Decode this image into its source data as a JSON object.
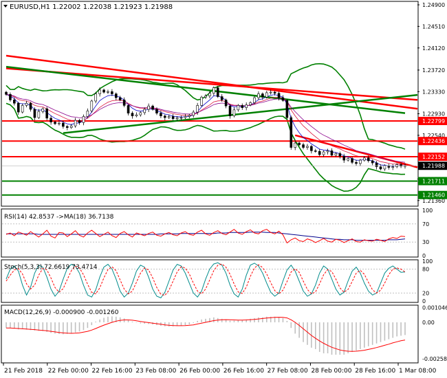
{
  "chart_data": {
    "type": "candlestick",
    "symbol": "EURUSD,H1",
    "title": "EURUSD,H1  1.22002 1.22038 1.21923 1.21988",
    "ohlc": {
      "open": 1.22002,
      "high": 1.22038,
      "low": 1.21923,
      "close": 1.21988
    },
    "price_axis": {
      "ticks": [
        "1.24900",
        "1.24510",
        "1.24120",
        "1.23720",
        "1.23330",
        "1.22930",
        "1.22540",
        "1.22150",
        "1.21750",
        "1.21360"
      ],
      "range": [
        1.2127,
        1.2495
      ]
    },
    "levels": [
      {
        "value": 1.22799,
        "label": "1.22799",
        "color": "#ff0000"
      },
      {
        "value": 1.22436,
        "label": "1.22436",
        "color": "#ff0000"
      },
      {
        "value": 1.22152,
        "label": "1.22152",
        "color": "#ff0000"
      },
      {
        "value": 1.21711,
        "label": "1.21711",
        "color": "#008000"
      },
      {
        "value": 1.2146,
        "label": "1.21460",
        "color": "#008000"
      }
    ],
    "current_price": {
      "value": 1.21988,
      "label": "1.21988"
    },
    "trendlines": [
      {
        "color": "#ff0000",
        "x": [
          0,
          102
        ],
        "y": [
          1.2398,
          1.2302
        ]
      },
      {
        "color": "#ff0000",
        "x": [
          0,
          102
        ],
        "y": [
          1.2375,
          1.2318
        ]
      },
      {
        "color": "#008000",
        "x": [
          0,
          98
        ],
        "y": [
          1.2378,
          1.2294
        ]
      },
      {
        "color": "#008000",
        "x": [
          14,
          105
        ],
        "y": [
          1.2258,
          1.2327
        ]
      },
      {
        "color": "#ff0000",
        "x": [
          71,
          105
        ],
        "y": [
          1.2254,
          1.2196
        ]
      }
    ],
    "price_series": [
      1.2328,
      1.2318,
      1.2312,
      1.2296,
      1.2308,
      1.2312,
      1.2301,
      1.2286,
      1.2297,
      1.2302,
      1.2285,
      1.2278,
      1.2275,
      1.2276,
      1.227,
      1.2268,
      1.2271,
      1.2281,
      1.2277,
      1.2288,
      1.2298,
      1.2316,
      1.2329,
      1.2336,
      1.2332,
      1.2333,
      1.2329,
      1.2322,
      1.2318,
      1.2308,
      1.2294,
      1.2289,
      1.2291,
      1.2295,
      1.2301,
      1.2307,
      1.2301,
      1.2294,
      1.2289,
      1.2286,
      1.2288,
      1.2284,
      1.2286,
      1.2286,
      1.2288,
      1.229,
      1.2296,
      1.2308,
      1.2323,
      1.2325,
      1.233,
      1.234,
      1.2324,
      1.2318,
      1.2307,
      1.2289,
      1.23,
      1.2308,
      1.2304,
      1.2309,
      1.2313,
      1.2322,
      1.2329,
      1.2323,
      1.2331,
      1.2332,
      1.233,
      1.2322,
      1.2317,
      1.2286,
      1.2232,
      1.224,
      1.2237,
      1.2232,
      1.2234,
      1.2226,
      1.2225,
      1.2219,
      1.2224,
      1.2226,
      1.2218,
      1.2221,
      1.2216,
      1.2209,
      1.2212,
      1.2205,
      1.2203,
      1.2209,
      1.2213,
      1.2208,
      1.2204,
      1.2197,
      1.2193,
      1.2199,
      1.2196,
      1.2197,
      1.2201,
      1.2198,
      1.2199
    ],
    "x_axis": {
      "labels": [
        "21 Feb 2018",
        "22 Feb 00:00",
        "22 Feb 16:00",
        "23 Feb 08:00",
        "26 Feb 00:00",
        "26 Feb 16:00",
        "27 Feb 08:00",
        "28 Feb 00:00",
        "28 Feb 16:00",
        "1 Mar 08:00"
      ]
    },
    "indicators": {
      "rsi": {
        "title": "RSI(14) 42.8537  ->MA(18) 36.7138",
        "range": [
          0,
          100
        ],
        "ticks": [
          "100",
          "70",
          "30",
          "0"
        ],
        "levels": [
          70,
          30
        ],
        "line_color": "#ff0000",
        "ma_color": "#00008b",
        "values": [
          47,
          50,
          44,
          52,
          49,
          45,
          53,
          47,
          41,
          48,
          56,
          43,
          39,
          51,
          50,
          42,
          48,
          55,
          45,
          41,
          50,
          56,
          49,
          42,
          47,
          52,
          44,
          40,
          49,
          53,
          46,
          41,
          50,
          47,
          44,
          49,
          52,
          45,
          43,
          48,
          51,
          46,
          44,
          50,
          53,
          47,
          45,
          52,
          56,
          48,
          45,
          51,
          55,
          49,
          46,
          52,
          58,
          50,
          47,
          53,
          57,
          50,
          48,
          55,
          58,
          51,
          48,
          54,
          46,
          28,
          35,
          39,
          33,
          31,
          37,
          34,
          29,
          33,
          38,
          32,
          30,
          36,
          34,
          29,
          33,
          37,
          31,
          30,
          35,
          33,
          32,
          36,
          34,
          31,
          37,
          40,
          38,
          43,
          42
        ],
        "ma": [
          48,
          48,
          48,
          48,
          48,
          48,
          48,
          48,
          47,
          47,
          47,
          47,
          47,
          47,
          47,
          47,
          47,
          47,
          47,
          47,
          47,
          47,
          47,
          47,
          47,
          47,
          47,
          47,
          47,
          47,
          47,
          47,
          47,
          47,
          47,
          47,
          47,
          47,
          48,
          48,
          48,
          48,
          48,
          49,
          49,
          49,
          49,
          49,
          49,
          49,
          49,
          49,
          50,
          50,
          50,
          51,
          51,
          51,
          51,
          51,
          52,
          52,
          52,
          52,
          51,
          51,
          51,
          50,
          49,
          48,
          47,
          46,
          45,
          44,
          43,
          42,
          41,
          40,
          39,
          38,
          37,
          36,
          36,
          35,
          35,
          35,
          34,
          34,
          34,
          34,
          34,
          34,
          34,
          34,
          35,
          35,
          35,
          36,
          37
        ]
      },
      "stoch": {
        "title": "Stoch(5,3,3) 72.6619 73.4714",
        "range": [
          0,
          100
        ],
        "ticks": [
          "100",
          "80",
          "20",
          "0"
        ],
        "levels": [
          80,
          20
        ],
        "k_color": "#008b8b",
        "d_color": "#ff0000",
        "k": [
          55,
          80,
          88,
          75,
          40,
          15,
          35,
          70,
          90,
          85,
          60,
          30,
          12,
          25,
          55,
          82,
          92,
          88,
          70,
          40,
          15,
          10,
          28,
          60,
          85,
          92,
          80,
          55,
          25,
          10,
          20,
          45,
          75,
          90,
          85,
          60,
          30,
          12,
          8,
          22,
          50,
          78,
          92,
          88,
          70,
          45,
          20,
          10,
          25,
          55,
          80,
          93,
          96,
          90,
          70,
          40,
          18,
          10,
          30,
          65,
          90,
          95,
          88,
          70,
          45,
          22,
          12,
          20,
          50,
          78,
          90,
          75,
          50,
          25,
          12,
          18,
          40,
          70,
          88,
          80,
          55,
          30,
          15,
          22,
          50,
          75,
          85,
          70,
          45,
          25,
          15,
          20,
          45,
          70,
          82,
          88,
          80,
          72,
          73
        ],
        "d": [
          50,
          65,
          78,
          81,
          68,
          43,
          30,
          40,
          65,
          82,
          78,
          58,
          34,
          22,
          31,
          54,
          76,
          87,
          83,
          66,
          42,
          22,
          18,
          33,
          58,
          79,
          86,
          76,
          53,
          30,
          18,
          25,
          47,
          70,
          83,
          78,
          58,
          34,
          17,
          14,
          27,
          50,
          73,
          86,
          83,
          68,
          45,
          25,
          18,
          30,
          53,
          76,
          90,
          93,
          85,
          67,
          43,
          23,
          19,
          35,
          62,
          83,
          91,
          84,
          68,
          46,
          26,
          18,
          27,
          49,
          73,
          81,
          72,
          50,
          29,
          18,
          23,
          43,
          66,
          79,
          74,
          55,
          33,
          22,
          29,
          49,
          70,
          77,
          67,
          47,
          28,
          20,
          27,
          45,
          66,
          80,
          83,
          80,
          73
        ]
      },
      "macd": {
        "title": "MACD(12,26,9) -0.000900 -0.001260",
        "range": [
          -0.00278,
          0.00112
        ],
        "ticks": [
          "0.001046",
          "0.00",
          "-0.002581"
        ],
        "hist_color": "#c0c0c0",
        "signal_color": "#ff0000",
        "hist": [
          -0.0004,
          -0.0004,
          -0.00045,
          -0.0005,
          -0.00048,
          -0.00052,
          -0.00055,
          -0.00058,
          -0.0006,
          -0.00062,
          -0.00068,
          -0.00075,
          -0.0008,
          -0.00083,
          -0.00085,
          -0.00082,
          -0.0008,
          -0.00072,
          -0.00065,
          -0.00055,
          -0.0004,
          -0.0002,
          5e-05,
          0.0002,
          0.00032,
          0.0004,
          0.00042,
          0.0004,
          0.00035,
          0.00028,
          0.00015,
          5e-05,
          -2e-05,
          -8e-05,
          -0.0001,
          -0.00012,
          -0.00015,
          -0.0002,
          -0.00025,
          -0.00028,
          -0.0003,
          -0.00028,
          -0.00025,
          -0.00022,
          -0.0002,
          -0.00015,
          -5e-05,
          0.0001,
          0.0002,
          0.00025,
          0.0003,
          0.00035,
          0.0003,
          0.00025,
          0.0002,
          0.00012,
          0.00012,
          0.00015,
          0.00015,
          0.0002,
          0.00025,
          0.0003,
          0.00035,
          0.00035,
          0.0004,
          0.0004,
          0.0004,
          0.00035,
          0.0003,
          0.0001,
          -0.0004,
          -0.0008,
          -0.0011,
          -0.0014,
          -0.0016,
          -0.0018,
          -0.0019,
          -0.0021,
          -0.0022,
          -0.0022,
          -0.0023,
          -0.0023,
          -0.0023,
          -0.0023,
          -0.0022,
          -0.0021,
          -0.002,
          -0.0019,
          -0.0018,
          -0.0017,
          -0.0016,
          -0.0015,
          -0.0014,
          -0.0013,
          -0.0012,
          -0.0011,
          -0.001,
          -0.00095,
          -0.0009
        ],
        "signal": [
          -0.0004,
          -0.0004,
          -0.00042,
          -0.00044,
          -0.00046,
          -0.00048,
          -0.0005,
          -0.00052,
          -0.00055,
          -0.00057,
          -0.0006,
          -0.00064,
          -0.00068,
          -0.00072,
          -0.00075,
          -0.00077,
          -0.00078,
          -0.00077,
          -0.00075,
          -0.0007,
          -0.00064,
          -0.00055,
          -0.00044,
          -0.00032,
          -0.0002,
          -0.0001,
          0.0,
          8e-05,
          0.00014,
          0.00017,
          0.00017,
          0.00015,
          0.00011,
          6e-05,
          2e-05,
          -2e-05,
          -6e-05,
          -0.0001,
          -0.00014,
          -0.00018,
          -0.00021,
          -0.00023,
          -0.00024,
          -0.00024,
          -0.00023,
          -0.00021,
          -0.00018,
          -0.00012,
          -6e-05,
          0.0,
          6e-05,
          0.00012,
          0.00016,
          0.00018,
          0.00019,
          0.00018,
          0.00017,
          0.00016,
          0.00016,
          0.00017,
          0.00019,
          0.00021,
          0.00024,
          0.00027,
          0.0003,
          0.00033,
          0.00035,
          0.00036,
          0.00035,
          0.00031,
          0.00018,
          0.0,
          -0.00022,
          -0.00046,
          -0.0007,
          -0.00093,
          -0.00113,
          -0.00132,
          -0.00149,
          -0.00164,
          -0.00177,
          -0.00187,
          -0.00196,
          -0.00202,
          -0.00205,
          -0.00206,
          -0.00205,
          -0.00202,
          -0.00198,
          -0.00192,
          -0.00186,
          -0.00179,
          -0.00171,
          -0.00163,
          -0.00155,
          -0.00146,
          -0.00138,
          -0.00131,
          -0.00126
        ]
      }
    }
  }
}
